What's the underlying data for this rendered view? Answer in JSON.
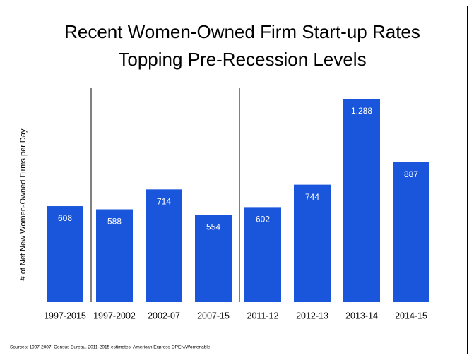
{
  "chart_data": {
    "type": "bar",
    "title": [
      "Recent Women-Owned Firm Start-up Rates",
      "Topping Pre-Recession Levels"
    ],
    "y_label": "# of Net New Women-Owned Firms per Day",
    "categories": [
      "1997-2015",
      "1997-2002",
      "2002-07",
      "2007-15",
      "2011-12",
      "2012-13",
      "2013-14",
      "2014-15"
    ],
    "values": [
      608,
      588,
      714,
      554,
      602,
      744,
      1288,
      887
    ],
    "value_labels": [
      "608",
      "588",
      "714",
      "554",
      "602",
      "744",
      "1,288",
      "887"
    ],
    "color": "#1a56db",
    "ylim": [
      0,
      1355
    ],
    "source": "Sources: 1997-2007, Census Bureau. 2011-2015 estimates, American Express OPEN/Womenable."
  }
}
